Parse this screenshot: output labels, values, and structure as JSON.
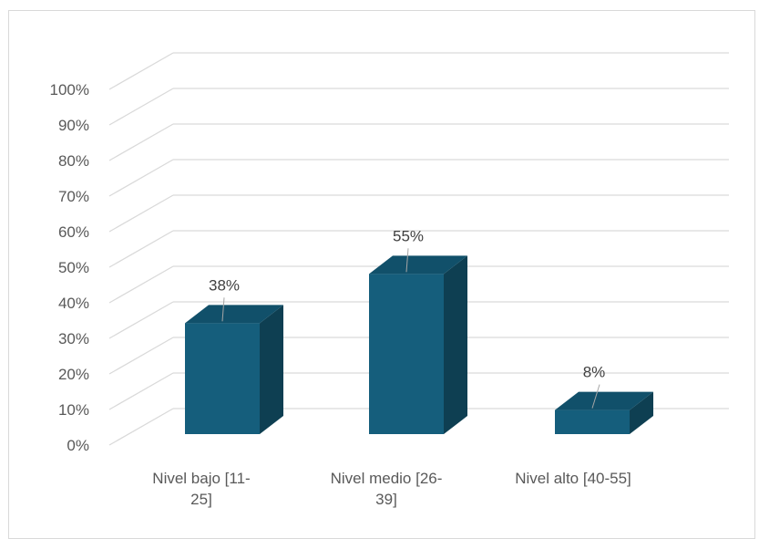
{
  "chart_data": {
    "type": "bar",
    "style": "3d-column",
    "categories": [
      [
        "Nivel bajo  [11-",
        "25]"
      ],
      [
        "Nivel medio  [26-",
        "39]"
      ],
      [
        "Nivel alto  [40-55]"
      ]
    ],
    "values": [
      38,
      55,
      8
    ],
    "data_labels": [
      "38%",
      "55%",
      "8%"
    ],
    "y_ticks": [
      "0%",
      "10%",
      "20%",
      "30%",
      "40%",
      "50%",
      "60%",
      "70%",
      "80%",
      "90%",
      "100%"
    ],
    "ylim": [
      0,
      100
    ],
    "grid": true,
    "legend": "none",
    "title": "",
    "xlabel": "",
    "ylabel": "",
    "colors": {
      "front": "#155E7C",
      "side": "#0E3F52",
      "top": "#11506A",
      "grid": "#d9d9d9",
      "text": "#595959"
    }
  }
}
